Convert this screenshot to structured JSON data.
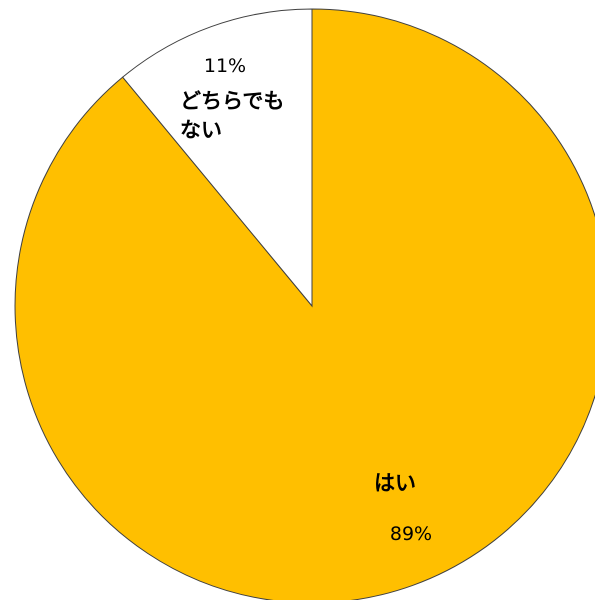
{
  "chart_data": {
    "type": "pie",
    "slices": [
      {
        "label_lines": [
          "はい"
        ],
        "value": 89,
        "percent_label": "89%",
        "color": "#FFBF00"
      },
      {
        "label_lines": [
          "どちらでも",
          "ない"
        ],
        "value": 11,
        "percent_label": "11%",
        "color": "#FFFFFF"
      }
    ],
    "stroke_color": "#404040",
    "legend": "none"
  }
}
